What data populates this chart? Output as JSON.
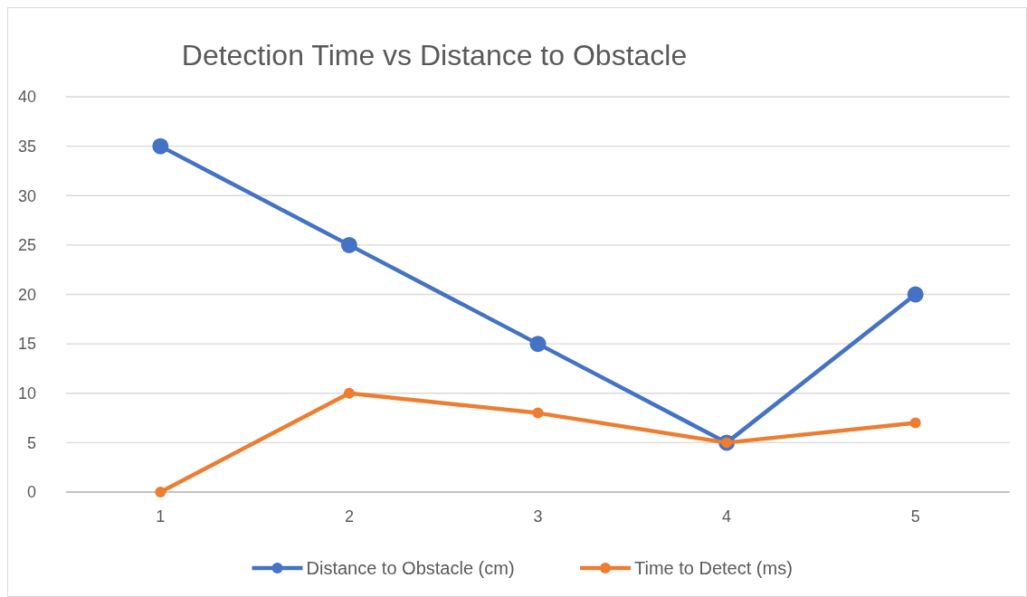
{
  "chart_data": {
    "type": "line",
    "title": "Detection Time vs Distance to Obstacle",
    "categories": [
      "1",
      "2",
      "3",
      "4",
      "5"
    ],
    "series": [
      {
        "name": "Distance to Obstacle (cm)",
        "color": "#4472c4",
        "values": [
          35,
          25,
          15,
          5,
          20
        ]
      },
      {
        "name": "Time to Detect (ms)",
        "color": "#ed7d31",
        "values": [
          0,
          10,
          8,
          5,
          7
        ]
      }
    ],
    "ylim": [
      0,
      40
    ],
    "yticks": [
      0,
      5,
      10,
      15,
      20,
      25,
      30,
      35,
      40
    ],
    "grid": "y",
    "legend": "bottom",
    "marker": "circle",
    "line_style": "solid"
  }
}
